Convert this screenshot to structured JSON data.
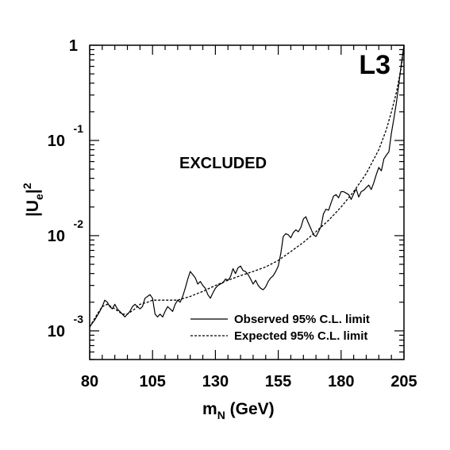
{
  "chart_data": {
    "type": "line",
    "experiment_label": "L3",
    "annotation": "EXCLUDED",
    "xlabel": {
      "main": "m",
      "sub": "N",
      "suffix": " (GeV)"
    },
    "ylabel": {
      "main": "|U",
      "sub": "e",
      "suffix": "|",
      "sup": "2"
    },
    "xlim": [
      80,
      205
    ],
    "ylim": [
      0.0005,
      1
    ],
    "yscale": "log",
    "x_ticks": [
      {
        "value": 80,
        "label": "80"
      },
      {
        "value": 105,
        "label": "105"
      },
      {
        "value": 130,
        "label": "130"
      },
      {
        "value": 155,
        "label": "155"
      },
      {
        "value": 180,
        "label": "180"
      },
      {
        "value": 205,
        "label": "205"
      }
    ],
    "y_ticks": [
      {
        "value": 1,
        "base": "1",
        "exp": ""
      },
      {
        "value": 0.1,
        "base": "10",
        "exp": "-1"
      },
      {
        "value": 0.01,
        "base": "10",
        "exp": "-2"
      },
      {
        "value": 0.001,
        "base": "10",
        "exp": "-3"
      }
    ],
    "legend_position": "bottom-right",
    "series": [
      {
        "name": "Observed 95% C.L. limit",
        "style": "solid",
        "x": [
          80,
          82,
          84,
          85,
          86,
          87,
          88,
          89,
          90,
          91,
          92,
          93,
          94,
          95,
          96,
          97,
          98,
          99,
          100,
          101,
          102,
          103,
          104,
          105,
          106,
          107,
          108,
          109,
          110,
          111,
          112,
          113,
          114,
          115,
          116,
          117,
          118,
          119,
          120,
          121,
          122,
          123,
          124,
          125,
          126,
          127,
          128,
          129,
          130,
          131,
          132,
          133,
          134,
          135,
          136,
          137,
          138,
          139,
          140,
          141,
          142,
          143,
          144,
          145,
          146,
          147,
          148,
          149,
          150,
          151,
          152,
          153,
          154,
          155,
          156,
          157,
          158,
          159,
          160,
          161,
          162,
          163,
          164,
          165,
          166,
          167,
          168,
          169,
          170,
          171,
          172,
          173,
          174,
          175,
          176,
          177,
          178,
          179,
          180,
          181,
          182,
          183,
          184,
          185,
          186,
          187,
          188,
          189,
          190,
          191,
          192,
          193,
          194,
          195,
          196,
          197,
          198,
          199,
          200,
          201,
          202,
          203,
          204,
          205
        ],
        "y": [
          0.0011,
          0.0013,
          0.0016,
          0.0018,
          0.0021,
          0.002,
          0.0018,
          0.0017,
          0.0019,
          0.0017,
          0.0016,
          0.0015,
          0.0014,
          0.0015,
          0.0016,
          0.0018,
          0.0019,
          0.0018,
          0.0017,
          0.0018,
          0.0022,
          0.0023,
          0.0024,
          0.0022,
          0.0015,
          0.0014,
          0.0015,
          0.0014,
          0.0016,
          0.0018,
          0.0017,
          0.0016,
          0.0019,
          0.0021,
          0.002,
          0.0023,
          0.0028,
          0.0035,
          0.0042,
          0.0039,
          0.0036,
          0.0031,
          0.0033,
          0.003,
          0.0028,
          0.0024,
          0.0022,
          0.0025,
          0.0028,
          0.003,
          0.0031,
          0.0032,
          0.0035,
          0.0034,
          0.0037,
          0.0045,
          0.004,
          0.0046,
          0.0048,
          0.0043,
          0.0042,
          0.0039,
          0.0035,
          0.0031,
          0.0034,
          0.003,
          0.0028,
          0.0027,
          0.0029,
          0.0033,
          0.0036,
          0.0038,
          0.0042,
          0.0048,
          0.0065,
          0.0098,
          0.0105,
          0.0102,
          0.0095,
          0.0108,
          0.0115,
          0.011,
          0.0122,
          0.015,
          0.0158,
          0.0135,
          0.0118,
          0.0102,
          0.0098,
          0.011,
          0.0125,
          0.017,
          0.019,
          0.0185,
          0.022,
          0.026,
          0.027,
          0.025,
          0.029,
          0.029,
          0.028,
          0.027,
          0.024,
          0.0275,
          0.031,
          0.0255,
          0.029,
          0.03,
          0.032,
          0.034,
          0.0305,
          0.036,
          0.044,
          0.052,
          0.048,
          0.064,
          0.07,
          0.076,
          0.12,
          0.17,
          0.25,
          0.4,
          0.65,
          1.0
        ]
      },
      {
        "name": "Expected 95% C.L. limit",
        "style": "dashed",
        "x": [
          80,
          83,
          85,
          87,
          90,
          93,
          95,
          98,
          100,
          103,
          105,
          108,
          110,
          115,
          120,
          125,
          130,
          135,
          140,
          145,
          150,
          155,
          160,
          165,
          170,
          175,
          180,
          185,
          190,
          195,
          198,
          200,
          202,
          204,
          205
        ],
        "y": [
          0.0011,
          0.0015,
          0.0018,
          0.0019,
          0.0017,
          0.0015,
          0.0015,
          0.0017,
          0.0019,
          0.002,
          0.0021,
          0.0021,
          0.0021,
          0.0021,
          0.0023,
          0.0026,
          0.003,
          0.0034,
          0.0038,
          0.0042,
          0.0047,
          0.0055,
          0.0068,
          0.0085,
          0.011,
          0.0145,
          0.02,
          0.029,
          0.045,
          0.08,
          0.13,
          0.2,
          0.32,
          0.6,
          1.0
        ]
      }
    ]
  }
}
